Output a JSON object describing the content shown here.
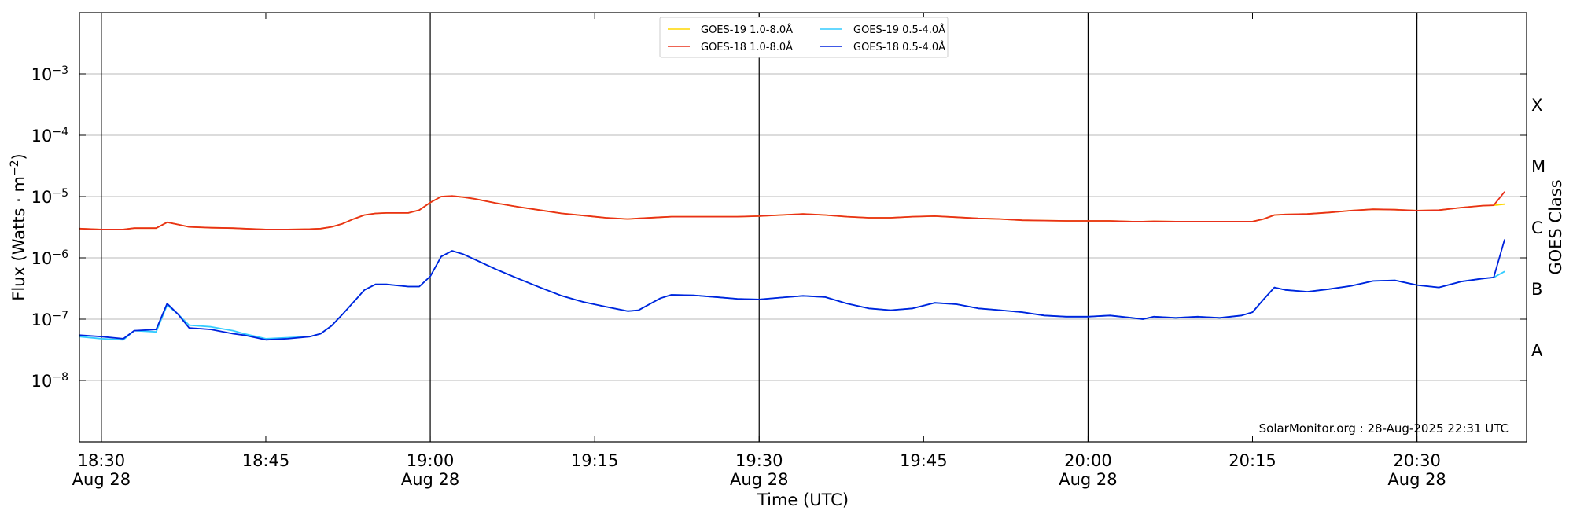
{
  "chart_data": {
    "type": "line",
    "title": "",
    "xlabel": "Time (UTC)",
    "ylabel": "Flux (Watts · m",
    "ylabel_sup": "−2",
    "ylabel_close": ")",
    "y2label": "GOES Class",
    "yscale": "log",
    "ylim": [
      1e-09,
      0.01
    ],
    "xlim": [
      "18:28",
      "20:40"
    ],
    "grid": true,
    "legend_placement": "upper-center",
    "x_ticks": [
      {
        "t": "18:30",
        "label": "18:30",
        "sub": "Aug 28"
      },
      {
        "t": "18:45",
        "label": "18:45",
        "sub": ""
      },
      {
        "t": "19:00",
        "label": "19:00",
        "sub": "Aug 28"
      },
      {
        "t": "19:15",
        "label": "19:15",
        "sub": ""
      },
      {
        "t": "19:30",
        "label": "19:30",
        "sub": "Aug 28"
      },
      {
        "t": "19:45",
        "label": "19:45",
        "sub": ""
      },
      {
        "t": "20:00",
        "label": "20:00",
        "sub": "Aug 28"
      },
      {
        "t": "20:15",
        "label": "20:15",
        "sub": ""
      },
      {
        "t": "20:30",
        "label": "20:30",
        "sub": "Aug 28"
      }
    ],
    "vlines": [
      "18:30",
      "19:00",
      "19:30",
      "20:00",
      "20:30"
    ],
    "y_ticks": [
      {
        "exp": -3,
        "label": "10",
        "sup": "−3"
      },
      {
        "exp": -4,
        "label": "10",
        "sup": "−4"
      },
      {
        "exp": -5,
        "label": "10",
        "sup": "−5"
      },
      {
        "exp": -6,
        "label": "10",
        "sup": "−6"
      },
      {
        "exp": -7,
        "label": "10",
        "sup": "−7"
      },
      {
        "exp": -8,
        "label": "10",
        "sup": "−8"
      }
    ],
    "goes_classes": [
      {
        "label": "X",
        "exp": -3.5
      },
      {
        "label": "M",
        "exp": -4.5
      },
      {
        "label": "C",
        "exp": -5.5
      },
      {
        "label": "B",
        "exp": -6.5
      },
      {
        "label": "A",
        "exp": -7.5
      }
    ],
    "x": [
      "18:28",
      "18:30",
      "18:32",
      "18:33",
      "18:35",
      "18:36",
      "18:37",
      "18:38",
      "18:40",
      "18:42",
      "18:43",
      "18:45",
      "18:47",
      "18:49",
      "18:50",
      "18:51",
      "18:52",
      "18:53",
      "18:54",
      "18:55",
      "18:56",
      "18:58",
      "18:59",
      "19:00",
      "19:01",
      "19:02",
      "19:03",
      "19:04",
      "19:06",
      "19:08",
      "19:10",
      "19:12",
      "19:14",
      "19:16",
      "19:18",
      "19:19",
      "19:21",
      "19:22",
      "19:24",
      "19:26",
      "19:28",
      "19:30",
      "19:32",
      "19:34",
      "19:36",
      "19:38",
      "19:40",
      "19:42",
      "19:44",
      "19:46",
      "19:48",
      "19:50",
      "19:52",
      "19:54",
      "19:56",
      "19:58",
      "20:00",
      "20:02",
      "20:04",
      "20:05",
      "20:06",
      "20:08",
      "20:10",
      "20:12",
      "20:14",
      "20:15",
      "20:16",
      "20:17",
      "20:18",
      "20:20",
      "20:22",
      "20:24",
      "20:26",
      "20:28",
      "20:30",
      "20:32",
      "20:34",
      "20:36",
      "20:37",
      "20:38"
    ],
    "series": [
      {
        "name": "GOES-19 1.0-8.0Å",
        "color": "#ffd700",
        "values": [
          3e-06,
          2.9e-06,
          2.9e-06,
          3.05e-06,
          3.05e-06,
          3.8e-06,
          3.5e-06,
          3.2e-06,
          3.1e-06,
          3.05e-06,
          3e-06,
          2.9e-06,
          2.9e-06,
          2.95e-06,
          3e-06,
          3.2e-06,
          3.6e-06,
          4.3e-06,
          5e-06,
          5.3e-06,
          5.4e-06,
          5.4e-06,
          6e-06,
          8e-06,
          1e-05,
          1.02e-05,
          9.8e-06,
          9.2e-06,
          7.8e-06,
          6.8e-06,
          6e-06,
          5.3e-06,
          4.9e-06,
          4.5e-06,
          4.3e-06,
          4.4e-06,
          4.6e-06,
          4.7e-06,
          4.7e-06,
          4.7e-06,
          4.7e-06,
          4.8e-06,
          5e-06,
          5.2e-06,
          5e-06,
          4.7e-06,
          4.5e-06,
          4.5e-06,
          4.7e-06,
          4.8e-06,
          4.6e-06,
          4.4e-06,
          4.3e-06,
          4.1e-06,
          4.05e-06,
          4e-06,
          4e-06,
          4e-06,
          3.9e-06,
          3.9e-06,
          3.95e-06,
          3.9e-06,
          3.9e-06,
          3.9e-06,
          3.9e-06,
          3.9e-06,
          4.3e-06,
          5e-06,
          5.1e-06,
          5.2e-06,
          5.5e-06,
          5.9e-06,
          6.2e-06,
          6.1e-06,
          5.9e-06,
          6e-06,
          6.6e-06,
          7.1e-06,
          7.2e-06,
          7.5e-06
        ]
      },
      {
        "name": "GOES-18 1.0-8.0Å",
        "color": "#e8301a",
        "values": [
          3e-06,
          2.9e-06,
          2.9e-06,
          3.05e-06,
          3.05e-06,
          3.8e-06,
          3.5e-06,
          3.2e-06,
          3.1e-06,
          3.05e-06,
          3e-06,
          2.9e-06,
          2.9e-06,
          2.95e-06,
          3e-06,
          3.2e-06,
          3.6e-06,
          4.3e-06,
          5e-06,
          5.3e-06,
          5.4e-06,
          5.4e-06,
          6e-06,
          8e-06,
          1e-05,
          1.02e-05,
          9.8e-06,
          9.2e-06,
          7.8e-06,
          6.8e-06,
          6e-06,
          5.3e-06,
          4.9e-06,
          4.5e-06,
          4.3e-06,
          4.4e-06,
          4.6e-06,
          4.7e-06,
          4.7e-06,
          4.7e-06,
          4.7e-06,
          4.8e-06,
          5e-06,
          5.2e-06,
          5e-06,
          4.7e-06,
          4.5e-06,
          4.5e-06,
          4.7e-06,
          4.8e-06,
          4.6e-06,
          4.4e-06,
          4.3e-06,
          4.1e-06,
          4.05e-06,
          4e-06,
          4e-06,
          4e-06,
          3.9e-06,
          3.9e-06,
          3.95e-06,
          3.9e-06,
          3.9e-06,
          3.9e-06,
          3.9e-06,
          3.9e-06,
          4.3e-06,
          5e-06,
          5.1e-06,
          5.2e-06,
          5.5e-06,
          5.9e-06,
          6.2e-06,
          6.1e-06,
          5.9e-06,
          6e-06,
          6.6e-06,
          7.1e-06,
          7.2e-06,
          1.2e-05
        ]
      },
      {
        "name": "GOES-19 0.5-4.0Å",
        "color": "#33ccff",
        "values": [
          5.2e-08,
          4.8e-08,
          4.6e-08,
          6.5e-08,
          6.2e-08,
          1.7e-07,
          1.2e-07,
          8e-08,
          7.5e-08,
          6.5e-08,
          5.8e-08,
          4.8e-08,
          5e-08,
          5.2e-08,
          5.8e-08,
          7.8e-08,
          1.2e-07,
          1.9e-07,
          3e-07,
          3.7e-07,
          3.7e-07,
          3.4e-07,
          3.4e-07,
          5e-07,
          1.05e-06,
          1.3e-06,
          1.15e-06,
          9.5e-07,
          6.5e-07,
          4.6e-07,
          3.3e-07,
          2.4e-07,
          1.9e-07,
          1.6e-07,
          1.35e-07,
          1.4e-07,
          2.2e-07,
          2.5e-07,
          2.45e-07,
          2.3e-07,
          2.15e-07,
          2.1e-07,
          2.25e-07,
          2.4e-07,
          2.3e-07,
          1.8e-07,
          1.5e-07,
          1.4e-07,
          1.5e-07,
          1.85e-07,
          1.75e-07,
          1.5e-07,
          1.4e-07,
          1.3e-07,
          1.15e-07,
          1.1e-07,
          1.1e-07,
          1.15e-07,
          1.05e-07,
          1e-07,
          1.1e-07,
          1.05e-07,
          1.1e-07,
          1.05e-07,
          1.15e-07,
          1.3e-07,
          2.1e-07,
          3.3e-07,
          3e-07,
          2.8e-07,
          3.1e-07,
          3.5e-07,
          4.2e-07,
          4.3e-07,
          3.6e-07,
          3.3e-07,
          4.1e-07,
          4.6e-07,
          4.8e-07,
          6e-07
        ]
      },
      {
        "name": "GOES-18 0.5-4.0Å",
        "color": "#0022dd",
        "values": [
          5.5e-08,
          5.2e-08,
          4.8e-08,
          6.5e-08,
          6.8e-08,
          1.8e-07,
          1.2e-07,
          7.2e-08,
          6.8e-08,
          5.8e-08,
          5.5e-08,
          4.6e-08,
          4.8e-08,
          5.2e-08,
          5.8e-08,
          7.8e-08,
          1.2e-07,
          1.9e-07,
          3e-07,
          3.7e-07,
          3.7e-07,
          3.4e-07,
          3.4e-07,
          5e-07,
          1.05e-06,
          1.3e-06,
          1.15e-06,
          9.5e-07,
          6.5e-07,
          4.6e-07,
          3.3e-07,
          2.4e-07,
          1.9e-07,
          1.6e-07,
          1.35e-07,
          1.4e-07,
          2.2e-07,
          2.5e-07,
          2.45e-07,
          2.3e-07,
          2.15e-07,
          2.1e-07,
          2.25e-07,
          2.4e-07,
          2.3e-07,
          1.8e-07,
          1.5e-07,
          1.4e-07,
          1.5e-07,
          1.85e-07,
          1.75e-07,
          1.5e-07,
          1.4e-07,
          1.3e-07,
          1.15e-07,
          1.1e-07,
          1.1e-07,
          1.15e-07,
          1.05e-07,
          1e-07,
          1.1e-07,
          1.05e-07,
          1.1e-07,
          1.05e-07,
          1.15e-07,
          1.3e-07,
          2.1e-07,
          3.3e-07,
          3e-07,
          2.8e-07,
          3.1e-07,
          3.5e-07,
          4.2e-07,
          4.3e-07,
          3.6e-07,
          3.3e-07,
          4.1e-07,
          4.6e-07,
          4.8e-07,
          2e-06
        ]
      }
    ],
    "credit": "SolarMonitor.org : 28-Aug-2025 22:31 UTC"
  }
}
